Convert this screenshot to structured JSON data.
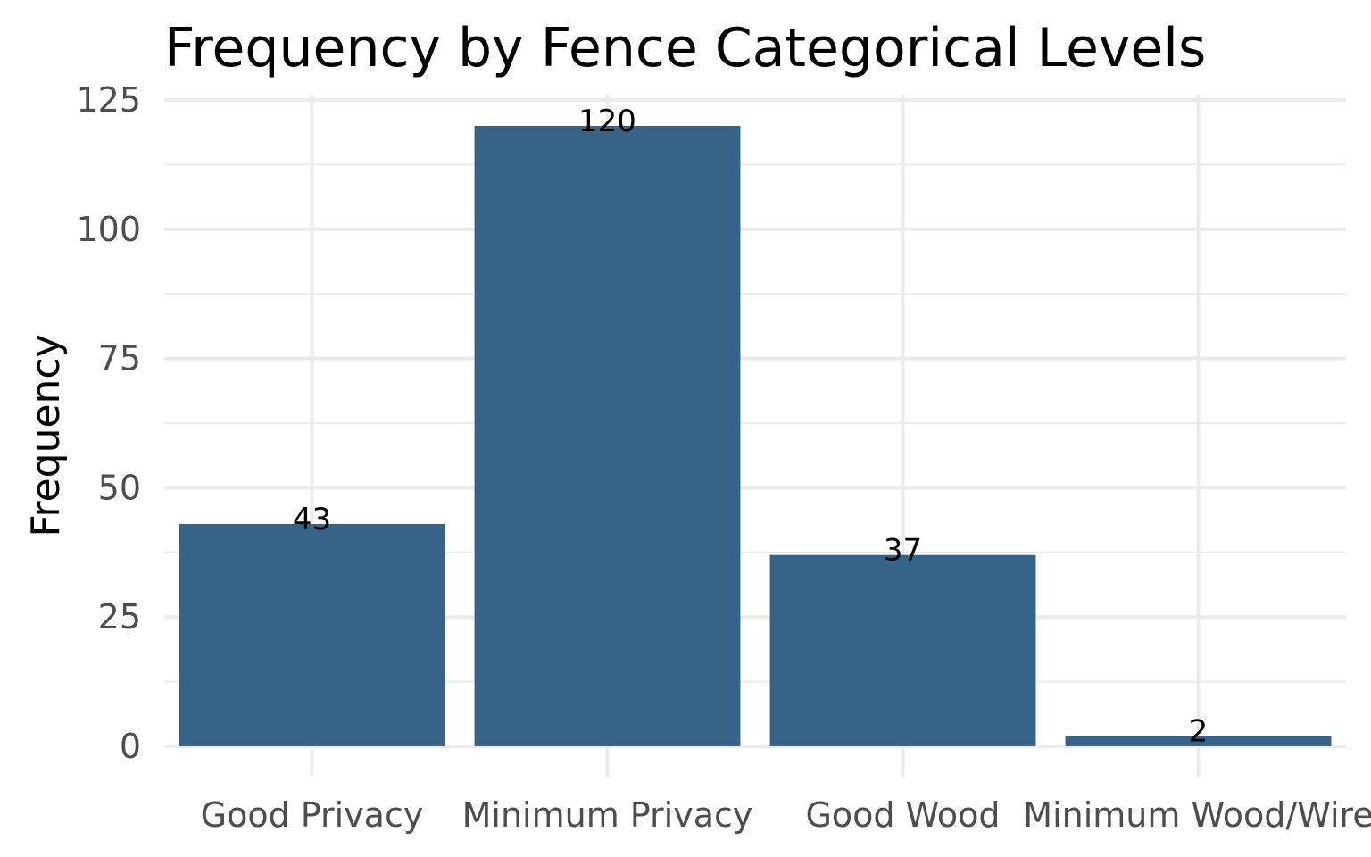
{
  "chart_data": {
    "type": "bar",
    "title": "Frequency by Fence Categorical Levels",
    "xlabel": "",
    "ylabel": "Frequency",
    "categories": [
      "Good Privacy",
      "Minimum Privacy",
      "Good Wood",
      "Minimum Wood/Wire"
    ],
    "values": [
      43,
      120,
      37,
      2
    ],
    "data_labels": [
      "43",
      "120",
      "37",
      "2"
    ],
    "ylim": [
      0,
      125
    ],
    "yticks": [
      0,
      25,
      50,
      75,
      100,
      125
    ],
    "ytick_labels": [
      "0",
      "25",
      "50",
      "75",
      "100",
      "125"
    ],
    "grid": true,
    "legend": "none",
    "bar_color": "#376389",
    "grid_color": "#ebebeb"
  }
}
